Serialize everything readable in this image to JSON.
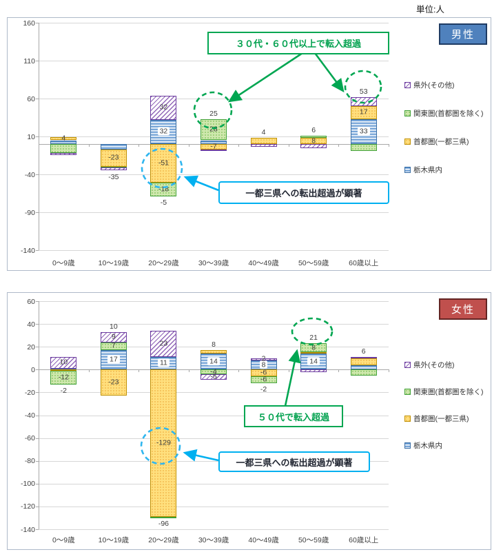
{
  "unit_label": "単位:人",
  "colors": {
    "male_badge": "#4F81BD",
    "female_badge": "#C0504D",
    "green_annotation": "#00A651",
    "blue_annotation": "#00B0F0",
    "series": {
      "tochigi": "#4F81BD",
      "shutoken": "#FFC000",
      "kanto": "#70AD47",
      "kengai": "#7030A0"
    }
  },
  "chart_data": [
    {
      "type": "bar",
      "stacked": true,
      "title": "男性",
      "unit": "人",
      "categories": [
        "0〜9歳",
        "10〜19歳",
        "20〜29歳",
        "30〜39歳",
        "40〜49歳",
        "50〜59歳",
        "60歳以上"
      ],
      "ylim": [
        -140,
        160
      ],
      "yticks": [
        160,
        110,
        60,
        10,
        -40,
        -90,
        -140
      ],
      "grid": true,
      "legend_position": "right",
      "series": [
        {
          "key": "tochigi",
          "name": "栃木県内",
          "values": [
            5,
            -7,
            32,
            5,
            0,
            0,
            33
          ],
          "labels": [
            "",
            "",
            "32",
            "",
            "",
            "",
            "33"
          ]
        },
        {
          "key": "shutoken",
          "name": "首都圏(一都三県)",
          "values": [
            4,
            -23,
            -51,
            -7,
            8,
            8,
            17
          ],
          "labels": [
            "4",
            "-23",
            "-51",
            "-7",
            "",
            "8",
            "17"
          ]
        },
        {
          "key": "kanto",
          "name": "関東圏(首都圏を除く)",
          "values": [
            -12,
            -1,
            -18,
            28,
            0,
            3,
            -9
          ],
          "labels": [
            "",
            "",
            "-18",
            "28",
            "",
            "",
            ""
          ]
        },
        {
          "key": "kengai",
          "name": "県外(その他)",
          "values": [
            -3,
            -4,
            32,
            -1,
            -4,
            -5,
            12
          ],
          "labels": [
            "",
            "",
            "32",
            "",
            "",
            "",
            ""
          ]
        }
      ],
      "totals": [
        "",
        "-35",
        "-5",
        "25",
        "4",
        "6",
        "53"
      ],
      "legend": [
        {
          "series": "kengai",
          "label": "県外(その他)"
        },
        {
          "series": "kanto",
          "label": "関東圏(首都圏を除く)"
        },
        {
          "series": "shutoken",
          "label": "首都圏(一都三県)"
        },
        {
          "series": "tochigi",
          "label": "栃木県内"
        }
      ],
      "annotations": [
        {
          "type": "callout-box",
          "color": "green",
          "text": "３０代・６０代以上で転入超過",
          "points_to": [
            "30〜39歳",
            "60歳以上"
          ]
        },
        {
          "type": "callout-box",
          "color": "blue",
          "text": "一都三県への転出超過が顕著",
          "points_to": [
            "20〜29歳 首都圏(一都三県) -51"
          ]
        },
        {
          "type": "dashed-circle",
          "color": "green",
          "around": "30〜39歳 合計 25"
        },
        {
          "type": "dashed-circle",
          "color": "green",
          "around": "60歳以上 合計 53"
        },
        {
          "type": "dashed-circle",
          "color": "blue",
          "around": "20〜29歳 首都圏 -51"
        }
      ]
    },
    {
      "type": "bar",
      "stacked": true,
      "title": "女性",
      "unit": "人",
      "categories": [
        "0〜9歳",
        "10〜19歳",
        "20〜29歳",
        "30〜39歳",
        "40〜49歳",
        "50〜59歳",
        "60歳以上"
      ],
      "ylim": [
        -140,
        60
      ],
      "yticks": [
        60,
        40,
        20,
        0,
        -20,
        -40,
        -60,
        -80,
        -100,
        -120,
        -140
      ],
      "grid": true,
      "legend_position": "right",
      "series": [
        {
          "key": "tochigi",
          "name": "栃木県内",
          "values": [
            1,
            17,
            11,
            14,
            8,
            14,
            4
          ],
          "labels": [
            "",
            "17",
            "11",
            "14",
            "8",
            "14",
            ""
          ]
        },
        {
          "key": "shutoken",
          "name": "首都圏(一都三県)",
          "values": [
            -1,
            -23,
            -129,
            3,
            -6,
            1,
            6
          ],
          "labels": [
            "",
            "-23",
            "-129",
            "",
            "-6",
            "",
            ""
          ]
        },
        {
          "key": "kanto",
          "name": "関東圏(首都圏を除く)",
          "values": [
            -12,
            7,
            -1,
            -4,
            -6,
            8,
            -5
          ],
          "labels": [
            "-12",
            "7",
            "",
            "-4",
            "-6",
            "8",
            ""
          ]
        },
        {
          "key": "kengai",
          "name": "県外(その他)",
          "values": [
            10,
            9,
            23,
            -5,
            2,
            -2,
            1
          ],
          "labels": [
            "10",
            "9",
            "23",
            "-5",
            "2",
            "",
            ""
          ]
        }
      ],
      "totals": [
        "-2",
        "10",
        "-96",
        "8",
        "-2",
        "21",
        "6"
      ],
      "legend": [
        {
          "series": "kengai",
          "label": "県外(その他)"
        },
        {
          "series": "kanto",
          "label": "関東圏(首都圏を除く)"
        },
        {
          "series": "shutoken",
          "label": "首都圏(一都三県)"
        },
        {
          "series": "tochigi",
          "label": "栃木県内"
        }
      ],
      "annotations": [
        {
          "type": "callout-box",
          "color": "green",
          "text": "５０代で転入超過",
          "points_to": [
            "50〜59歳"
          ]
        },
        {
          "type": "callout-box",
          "color": "blue",
          "text": "一都三県への転出超過が顕著",
          "points_to": [
            "20〜29歳 首都圏(一都三県) -129"
          ]
        },
        {
          "type": "dashed-circle",
          "color": "green",
          "around": "50〜59歳 合計 21"
        },
        {
          "type": "dashed-circle",
          "color": "blue",
          "around": "20〜29歳 首都圏 -129"
        }
      ]
    }
  ]
}
